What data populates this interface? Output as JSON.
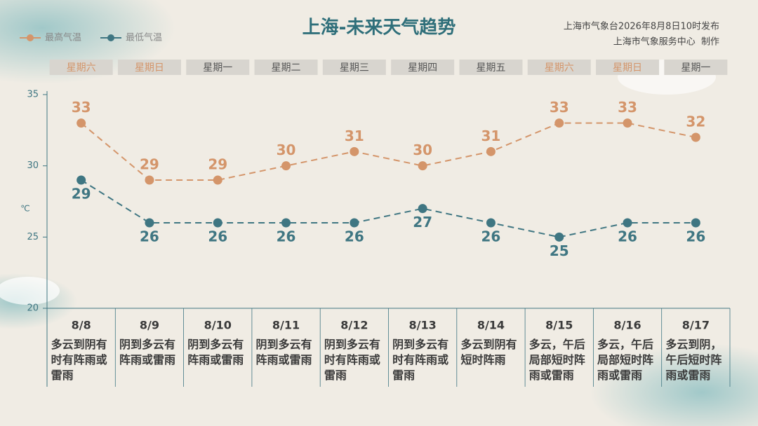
{
  "chart_data": {
    "type": "line",
    "title": "上海-未来天气趋势",
    "source": "上海市气象台2026年8月8日10时发布",
    "producer": "上海市气象服务中心  制作",
    "unit": "℃",
    "weekdays": [
      "星期六",
      "星期日",
      "星期一",
      "星期二",
      "星期三",
      "星期四",
      "星期五",
      "星期六",
      "星期日",
      "星期一"
    ],
    "weekend_color": "#d4956a",
    "weekday_color": "#555555",
    "categories": [
      "8/8",
      "8/9",
      "8/10",
      "8/11",
      "8/12",
      "8/13",
      "8/14",
      "8/15",
      "8/16",
      "8/17"
    ],
    "descriptions": [
      "多云到阴有时有阵雨或雷雨",
      "阴到多云有阵雨或雷雨",
      "阴到多云有阵雨或雷雨",
      "阴到多云有阵雨或雷雨",
      "阴到多云有时有阵雨或雷雨",
      "阴到多云有时有阵雨或雷雨",
      "多云到阴有短时阵雨",
      "多云，午后局部短时阵雨或雷雨",
      "多云，午后局部短时阵雨或雷雨",
      "多云到阴，午后短时阵雨或雷雨"
    ],
    "series": [
      {
        "name": "最高气温",
        "color": "#d4956a",
        "values": [
          33,
          29,
          29,
          30,
          31,
          30,
          31,
          33,
          33,
          32
        ]
      },
      {
        "name": "最低气温",
        "color": "#3f7682",
        "values": [
          29,
          26,
          26,
          26,
          26,
          27,
          26,
          25,
          26,
          26
        ]
      }
    ],
    "ylim": [
      20,
      35
    ],
    "yticks": [
      20,
      25,
      30,
      35
    ]
  }
}
